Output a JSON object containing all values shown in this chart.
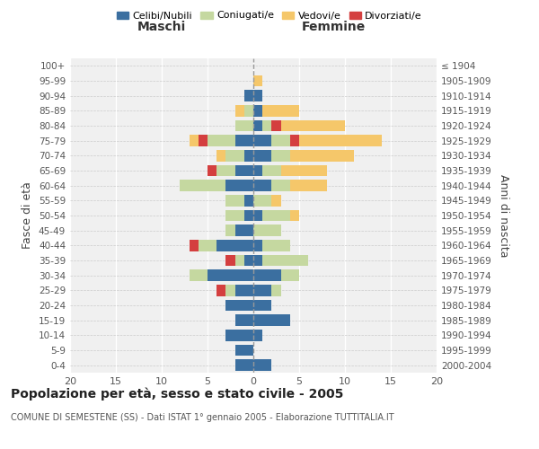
{
  "age_groups": [
    "0-4",
    "5-9",
    "10-14",
    "15-19",
    "20-24",
    "25-29",
    "30-34",
    "35-39",
    "40-44",
    "45-49",
    "50-54",
    "55-59",
    "60-64",
    "65-69",
    "70-74",
    "75-79",
    "80-84",
    "85-89",
    "90-94",
    "95-99",
    "100+"
  ],
  "birth_years": [
    "2000-2004",
    "1995-1999",
    "1990-1994",
    "1985-1989",
    "1980-1984",
    "1975-1979",
    "1970-1974",
    "1965-1969",
    "1960-1964",
    "1955-1959",
    "1950-1954",
    "1945-1949",
    "1940-1944",
    "1935-1939",
    "1930-1934",
    "1925-1929",
    "1920-1924",
    "1915-1919",
    "1910-1914",
    "1905-1909",
    "≤ 1904"
  ],
  "colors": {
    "celibi": "#3b6fa0",
    "coniugati": "#c5d8a0",
    "vedovi": "#f5c76a",
    "divorziati": "#d43f3f"
  },
  "maschi": {
    "celibi": [
      2,
      2,
      3,
      2,
      3,
      2,
      5,
      1,
      4,
      2,
      1,
      1,
      3,
      2,
      1,
      2,
      0,
      0,
      1,
      0,
      0
    ],
    "coniugati": [
      0,
      0,
      0,
      0,
      0,
      1,
      2,
      1,
      2,
      1,
      2,
      2,
      5,
      2,
      2,
      3,
      2,
      1,
      0,
      0,
      0
    ],
    "vedovi": [
      0,
      0,
      0,
      0,
      0,
      0,
      0,
      0,
      0,
      0,
      0,
      0,
      0,
      0,
      1,
      1,
      0,
      1,
      0,
      0,
      0
    ],
    "divorziati": [
      0,
      0,
      0,
      0,
      0,
      1,
      0,
      1,
      1,
      0,
      0,
      0,
      0,
      1,
      0,
      1,
      0,
      0,
      0,
      0,
      0
    ]
  },
  "femmine": {
    "celibi": [
      2,
      0,
      1,
      4,
      2,
      2,
      3,
      1,
      1,
      0,
      1,
      0,
      2,
      1,
      2,
      2,
      1,
      1,
      1,
      0,
      0
    ],
    "coniugati": [
      0,
      0,
      0,
      0,
      0,
      1,
      2,
      5,
      3,
      3,
      3,
      2,
      2,
      2,
      2,
      2,
      1,
      0,
      0,
      0,
      0
    ],
    "vedovi": [
      0,
      0,
      0,
      0,
      0,
      0,
      0,
      0,
      0,
      0,
      1,
      1,
      4,
      5,
      7,
      9,
      7,
      4,
      0,
      1,
      0
    ],
    "divorziati": [
      0,
      0,
      0,
      0,
      0,
      0,
      0,
      0,
      0,
      0,
      0,
      0,
      0,
      0,
      0,
      1,
      1,
      0,
      0,
      0,
      0
    ]
  },
  "xlim": 20,
  "title": "Popolazione per età, sesso e stato civile - 2005",
  "subtitle": "COMUNE DI SEMESTENE (SS) - Dati ISTAT 1° gennaio 2005 - Elaborazione TUTTITALIA.IT",
  "ylabel_left": "Fasce di età",
  "ylabel_right": "Anni di nascita",
  "xlabel_left": "Maschi",
  "xlabel_right": "Femmine",
  "legend_labels": [
    "Celibi/Nubili",
    "Coniugati/e",
    "Vedovi/e",
    "Divorziati/e"
  ]
}
